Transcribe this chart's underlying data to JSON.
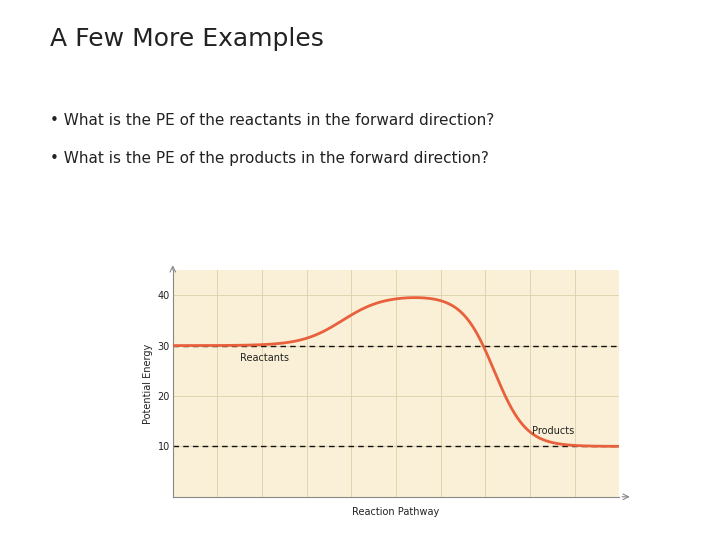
{
  "title": "A Few More Examples",
  "bullet1": "What is the PE of the reactants in the forward direction?",
  "bullet2": "What is the PE of the products in the forward direction?",
  "xlabel": "Reaction Pathway",
  "ylabel": "Potential Energy",
  "ylim": [
    0,
    45
  ],
  "yticks": [
    10,
    20,
    30,
    40
  ],
  "reactant_pe": 30,
  "product_pe": 10,
  "activation_pe": 40,
  "curve_color": "#E8603C",
  "dashed_color": "#111111",
  "bg_color": "#FAF0D7",
  "grid_color": "#DDD0A8",
  "reactants_label": "Reactants",
  "products_label": "Products",
  "title_fontsize": 18,
  "bullet_fontsize": 11,
  "axis_label_fontsize": 7,
  "tick_fontsize": 7,
  "annotation_fontsize": 7
}
